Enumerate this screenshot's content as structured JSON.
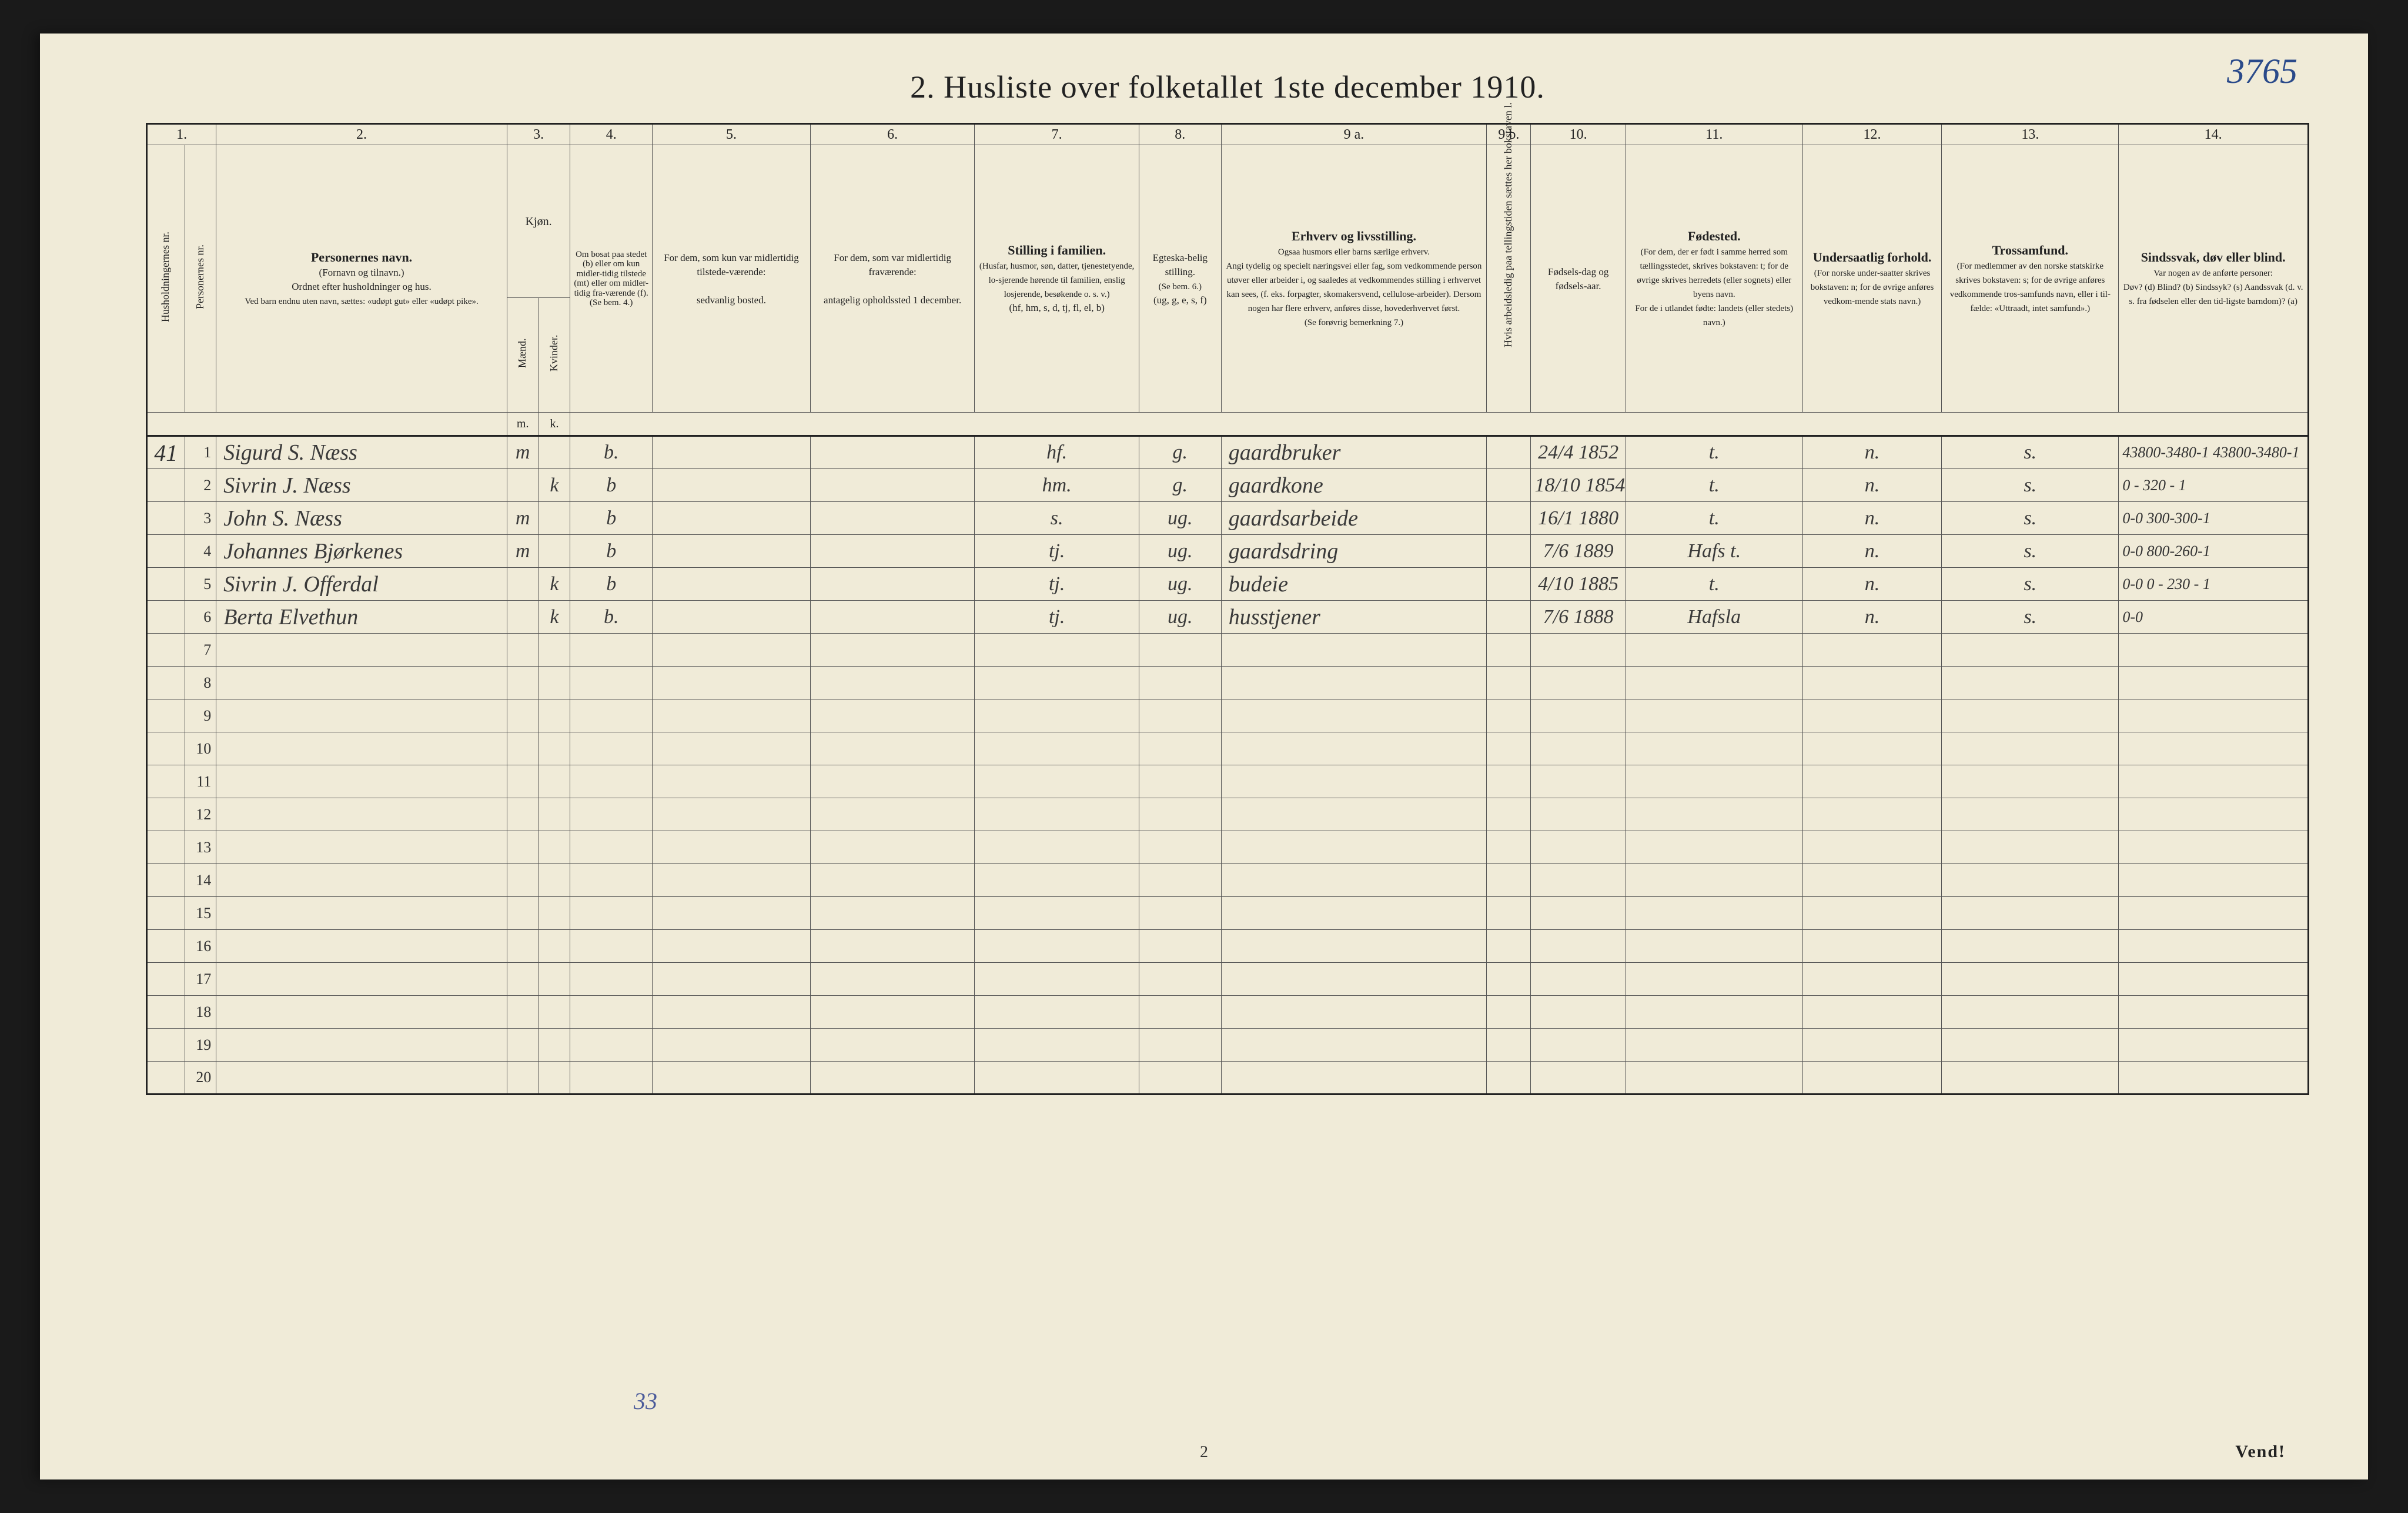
{
  "page": {
    "corner_note": "3765",
    "title": "2.  Husliste over folketallet 1ste december 1910.",
    "footer_page_num": "2",
    "footer_vend": "Vend!",
    "bottom_scrawl": "33"
  },
  "columns": {
    "nums": [
      "1.",
      "2.",
      "3.",
      "4.",
      "5.",
      "6.",
      "7.",
      "8.",
      "9 a.",
      "9 b.",
      "10.",
      "11.",
      "12.",
      "13.",
      "14."
    ],
    "h1_vert": "Husholdningernes nr.",
    "h1b_vert": "Personernes nr.",
    "h2_title": "Personernes navn.",
    "h2_sub1": "(Fornavn og tilnavn.)",
    "h2_sub2": "Ordnet efter husholdninger og hus.",
    "h2_sub3": "Ved barn endnu uten navn, sættes: «udøpt gut» eller «udøpt pike».",
    "h3_title": "Kjøn.",
    "h3_m": "Mænd.",
    "h3_k": "Kvinder.",
    "h3_mk_m": "m.",
    "h3_mk_k": "k.",
    "h4_title": "Om bosat paa stedet (b) eller om kun midler-tidig tilstede (mt) eller om midler-tidig fra-værende (f).",
    "h4_sub": "(Se bem. 4.)",
    "h5_title": "For dem, som kun var midlertidig tilstede-værende:",
    "h5_sub": "sedvanlig bosted.",
    "h6_title": "For dem, som var midlertidig fraværende:",
    "h6_sub": "antagelig opholdssted 1 december.",
    "h7_title": "Stilling i familien.",
    "h7_sub1": "(Husfar, husmor, søn, datter, tjenestetyende, lo-sjerende hørende til familien, enslig losjerende, besøkende o. s. v.)",
    "h7_sub2": "(hf, hm, s, d, tj, fl, el, b)",
    "h8_title": "Egteska-belig stilling.",
    "h8_sub1": "(Se bem. 6.)",
    "h8_sub2": "(ug, g, e, s, f)",
    "h9a_title": "Erhverv og livsstilling.",
    "h9a_sub1": "Ogsaa husmors eller barns særlige erhverv.",
    "h9a_sub2": "Angi tydelig og specielt næringsvei eller fag, som vedkommende person utøver eller arbeider i, og saaledes at vedkommendes stilling i erhvervet kan sees, (f. eks. forpagter, skomakersvend, cellulose-arbeider). Dersom nogen har flere erhverv, anføres disse, hovederhvervet først.",
    "h9a_sub3": "(Se forøvrig bemerkning 7.)",
    "h9b_vert": "Hvis arbeidsledig paa tellingstiden sættes her bokstaven l.",
    "h10_title": "Fødsels-dag og fødsels-aar.",
    "h11_title": "Fødested.",
    "h11_sub1": "(For dem, der er født i samme herred som tællingsstedet, skrives bokstaven: t; for de øvrige skrives herredets (eller sognets) eller byens navn.",
    "h11_sub2": "For de i utlandet fødte: landets (eller stedets) navn.)",
    "h12_title": "Undersaatlig forhold.",
    "h12_sub": "(For norske under-saatter skrives bokstaven: n; for de øvrige anføres vedkom-mende stats navn.)",
    "h13_title": "Trossamfund.",
    "h13_sub": "(For medlemmer av den norske statskirke skrives bokstaven: s; for de øvrige anføres vedkommende tros-samfunds navn, eller i til-fælde: «Uttraadt, intet samfund».)",
    "h14_title": "Sindssvak, døv eller blind.",
    "h14_sub1": "Var nogen av de anførte personer:",
    "h14_sub2": "Døv? (d)  Blind? (b)  Sindssyk? (s)  Aandssvak (d. v. s. fra fødselen eller den tid-ligste barndom)? (a)"
  },
  "rows": [
    {
      "hh": "41",
      "n": "1",
      "name": "Sigurd S. Næss",
      "m": "m",
      "k": "",
      "b": "b.",
      "c5": "",
      "c6": "",
      "c7": "hf.",
      "c8": "g.",
      "c9a": "gaardbruker",
      "c9b": "",
      "c10": "24/4 1852",
      "c11": "t.",
      "c12": "n.",
      "c13": "s.",
      "c14": "43800-3480-1  43800-3480-1"
    },
    {
      "hh": "",
      "n": "2",
      "name": "Sivrin J. Næss",
      "m": "",
      "k": "k",
      "b": "b",
      "c5": "",
      "c6": "",
      "c7": "hm.",
      "c8": "g.",
      "c9a": "gaardkone",
      "c9b": "",
      "c10": "18/10 1854",
      "c11": "t.",
      "c12": "n.",
      "c13": "s.",
      "c14": "0 - 320 - 1"
    },
    {
      "hh": "",
      "n": "3",
      "name": "John S. Næss",
      "m": "m",
      "k": "",
      "b": "b",
      "c5": "",
      "c6": "",
      "c7": "s.",
      "c8": "ug.",
      "c9a": "gaardsarbeide",
      "c9b": "",
      "c10": "16/1 1880",
      "c11": "t.",
      "c12": "n.",
      "c13": "s.",
      "c14": "0-0  300-300-1"
    },
    {
      "hh": "",
      "n": "4",
      "name": "Johannes Bjørkenes",
      "m": "m",
      "k": "",
      "b": "b",
      "c5": "",
      "c6": "",
      "c7": "tj.",
      "c8": "ug.",
      "c9a": "gaardsdring",
      "c9b": "",
      "c10": "7/6 1889",
      "c11": "Hafs t.",
      "c12": "n.",
      "c13": "s.",
      "c14": "0-0  800-260-1"
    },
    {
      "hh": "",
      "n": "5",
      "name": "Sivrin J. Offerdal",
      "m": "",
      "k": "k",
      "b": "b",
      "c5": "",
      "c6": "",
      "c7": "tj.",
      "c8": "ug.",
      "c9a": "budeie",
      "c9b": "",
      "c10": "4/10 1885",
      "c11": "t.",
      "c12": "n.",
      "c13": "s.",
      "c14": "0-0  0 - 230 - 1"
    },
    {
      "hh": "",
      "n": "6",
      "name": "Berta Elvethun",
      "m": "",
      "k": "k",
      "b": "b.",
      "c5": "",
      "c6": "",
      "c7": "tj.",
      "c8": "ug.",
      "c9a": "husstjener",
      "c9b": "",
      "c10": "7/6 1888",
      "c11": "Hafsla",
      "c12": "n.",
      "c13": "s.",
      "c14": "0-0"
    }
  ],
  "blank_rows": [
    "7",
    "8",
    "9",
    "10",
    "11",
    "12",
    "13",
    "14",
    "15",
    "16",
    "17",
    "18",
    "19",
    "20"
  ],
  "colwidths": {
    "c1a": 60,
    "c1b": 50,
    "c2": 460,
    "c3a": 50,
    "c3b": 50,
    "c4": 130,
    "c5": 250,
    "c6": 260,
    "c7": 260,
    "c8": 130,
    "c9a": 420,
    "c9b": 70,
    "c10": 150,
    "c11": 280,
    "c12": 220,
    "c13": 280,
    "c14": 300
  }
}
